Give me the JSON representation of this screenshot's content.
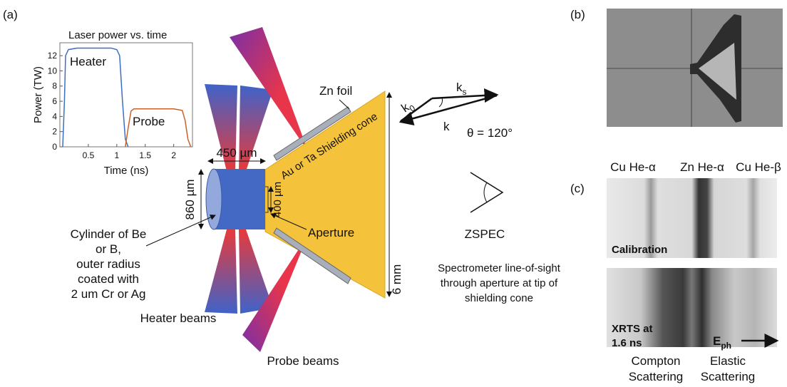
{
  "panel_labels": [
    "(a)",
    "(b)",
    "(c)"
  ],
  "inset_chart": {
    "type": "line",
    "title": "Laser power vs. time",
    "x_label": "Time (ns)",
    "y_label": "Power (TW)",
    "xlim": [
      0,
      2.33
    ],
    "ylim": [
      0,
      13.7
    ],
    "xticks": [
      0.5,
      1,
      1.5,
      2
    ],
    "yticks": [
      0,
      2,
      4,
      6,
      8,
      10,
      12
    ],
    "series": [
      {
        "name": "Heater",
        "color": "#3a6fc4",
        "x": [
          0.05,
          0.08,
          0.1,
          0.15,
          0.3,
          0.6,
          0.9,
          1.0,
          1.05,
          1.1,
          1.15,
          1.2
        ],
        "values": [
          0,
          6,
          12,
          12.8,
          13,
          13,
          13,
          12.8,
          12,
          6,
          1,
          0
        ]
      },
      {
        "name": "Probe",
        "color": "#c8622a",
        "x": [
          1.15,
          1.2,
          1.25,
          1.3,
          1.6,
          2.0,
          2.15,
          2.2,
          2.25,
          2.3
        ],
        "values": [
          0,
          2.5,
          4.7,
          5,
          5,
          5,
          4.8,
          3.5,
          1,
          0
        ]
      }
    ]
  },
  "diagram": {
    "zn_foil": "Zn foil",
    "cone": "Au or Ta Shielding cone",
    "width_450": "450 µm",
    "height_860": "860 µm",
    "aperture_400": "400 µm",
    "aperture": "Aperture",
    "size_6mm": "6 mm",
    "cylinder": [
      "Cylinder of Be",
      "or B,",
      "outer radius",
      "coated with",
      "2 um Cr or Ag"
    ],
    "heater_beams": "Heater beams",
    "probe_beams": "Probe beams",
    "zspec": "ZSPEC",
    "line_of_sight": [
      "Spectrometer line-of-sight",
      "through aperture at tip of",
      "shielding cone"
    ],
    "k0": {
      "base": "k",
      "sub": "0"
    },
    "ks": {
      "base": "k",
      "sub": "s"
    },
    "k": "k",
    "theta": "θ = 120°"
  },
  "spectra": {
    "lines": [
      "Cu He-α",
      "Zn He-α",
      "Cu He-β"
    ],
    "calibration": "Calibration",
    "xrts": [
      "XRTS at",
      "1.6 ns"
    ],
    "eph": {
      "base": "E",
      "sub": "ph"
    },
    "compton": [
      "Compton",
      "Scattering"
    ],
    "elastic": [
      "Elastic",
      "Scattering"
    ]
  }
}
